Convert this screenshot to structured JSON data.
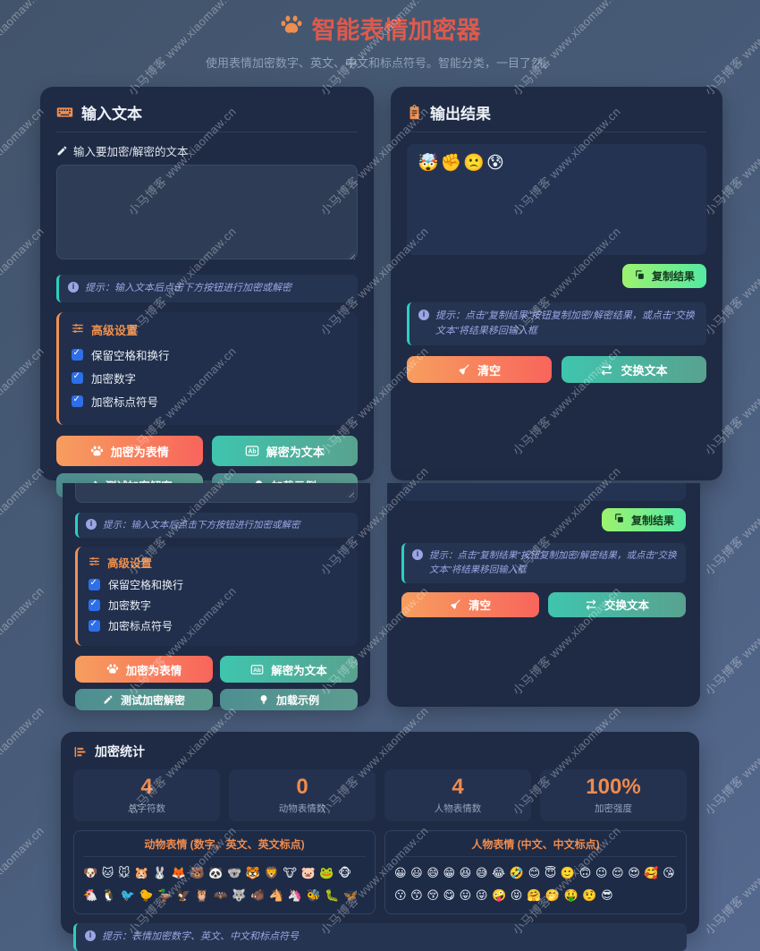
{
  "watermark": {
    "text": "小马博客 www.xiaomaw.cn"
  },
  "icons": {
    "info": "i"
  },
  "colors": {
    "accent_orange": "#ef8e4e",
    "title_red": "#dd5a4c",
    "tip_teal": "#2bd0c0",
    "checkbox_blue": "#2d6fe8",
    "card_bg": "#1f2b45",
    "copy_green": "#9df26f"
  },
  "header": {
    "title": "智能表情加密器",
    "subtitle": "使用表情加密数字、英文、中文和标点符号。智能分类，一目了然。"
  },
  "input_panel": {
    "title": "输入文本",
    "label": "输入要加密/解密的文本",
    "textarea_value": "",
    "tip": "提示：输入文本后点击下方按钮进行加密或解密",
    "advanced": {
      "title": "高级设置",
      "options": [
        {
          "label": "保留空格和换行",
          "checked": true
        },
        {
          "label": "加密数字",
          "checked": true
        },
        {
          "label": "加密标点符号",
          "checked": true
        }
      ]
    },
    "buttons": {
      "encrypt": "加密为表情",
      "decrypt": "解密为文本",
      "test": "测试加密解密",
      "example": "加载示例"
    }
  },
  "output_panel": {
    "title": "输出结果",
    "result": "🤯✊🙁😰",
    "copy_label": "复制结果",
    "tip": "提示：点击\"复制结果\"按钮复制加密/解密结果，或点击\"交换文本\"将结果移回输入框",
    "buttons": {
      "clear": "清空",
      "swap": "交换文本"
    }
  },
  "stats_panel": {
    "title": "加密统计",
    "stats": [
      {
        "value": "4",
        "label": "总字符数"
      },
      {
        "value": "0",
        "label": "动物表情数"
      },
      {
        "value": "4",
        "label": "人物表情数"
      },
      {
        "value": "100%",
        "label": "加密强度"
      }
    ],
    "legends": [
      {
        "title": "动物表情 (数字、英文、英文标点)",
        "emojis": "🐶 🐱 🐭 🐹 🐰 🦊 🐻 🐼 🐨 🐯 🦁 🐮 🐷 🐸 🐵 🐔 🐧 🐦 🐤 🦆 🦅 🦉 🦇 🐺 🐗 🐴 🦄 🐝 🐛 🦋"
      },
      {
        "title": "人物表情 (中文、中文标点)",
        "emojis": "😀 😃 😄 😁 😆 😅 😂 🤣 😊 😇 🙂 🙃 😉 😌 😍 🥰 😘 😗 😙 😚 😋 😛 😜 🤪 😝 🤗 🤭 🤑 🤨 😎"
      }
    ],
    "tip": "提示：表情加密数字、英文、中文和标点符号"
  }
}
